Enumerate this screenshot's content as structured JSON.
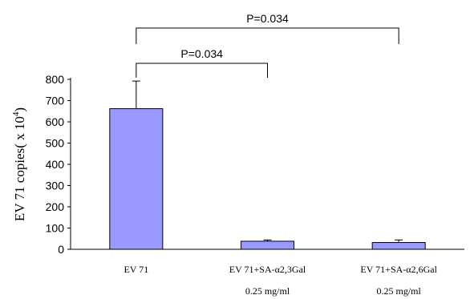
{
  "chart_data": {
    "type": "bar",
    "categories": [
      [
        "EV 71"
      ],
      [
        "EV 71+SA-α2,3Gal",
        "0.25 mg/ml"
      ],
      [
        "EV 71+SA-α2,6Gal",
        "0.25 mg/ml"
      ]
    ],
    "values": [
      662,
      38,
      32
    ],
    "error_bars": [
      130,
      6,
      12
    ],
    "ylabel": "EV 71 copies( x 10",
    "ylabel_sup": "4",
    "ylabel_close": ")",
    "ylim": [
      0,
      800
    ],
    "yticks": [
      0,
      100,
      200,
      300,
      400,
      500,
      600,
      700,
      800
    ],
    "bar_color": "#9999ff",
    "grid": false,
    "annotations": [
      {
        "text": "P=0.034",
        "from_index": 0,
        "to_index": 1
      },
      {
        "text": "P=0.034",
        "from_index": 0,
        "to_index": 2
      }
    ]
  }
}
